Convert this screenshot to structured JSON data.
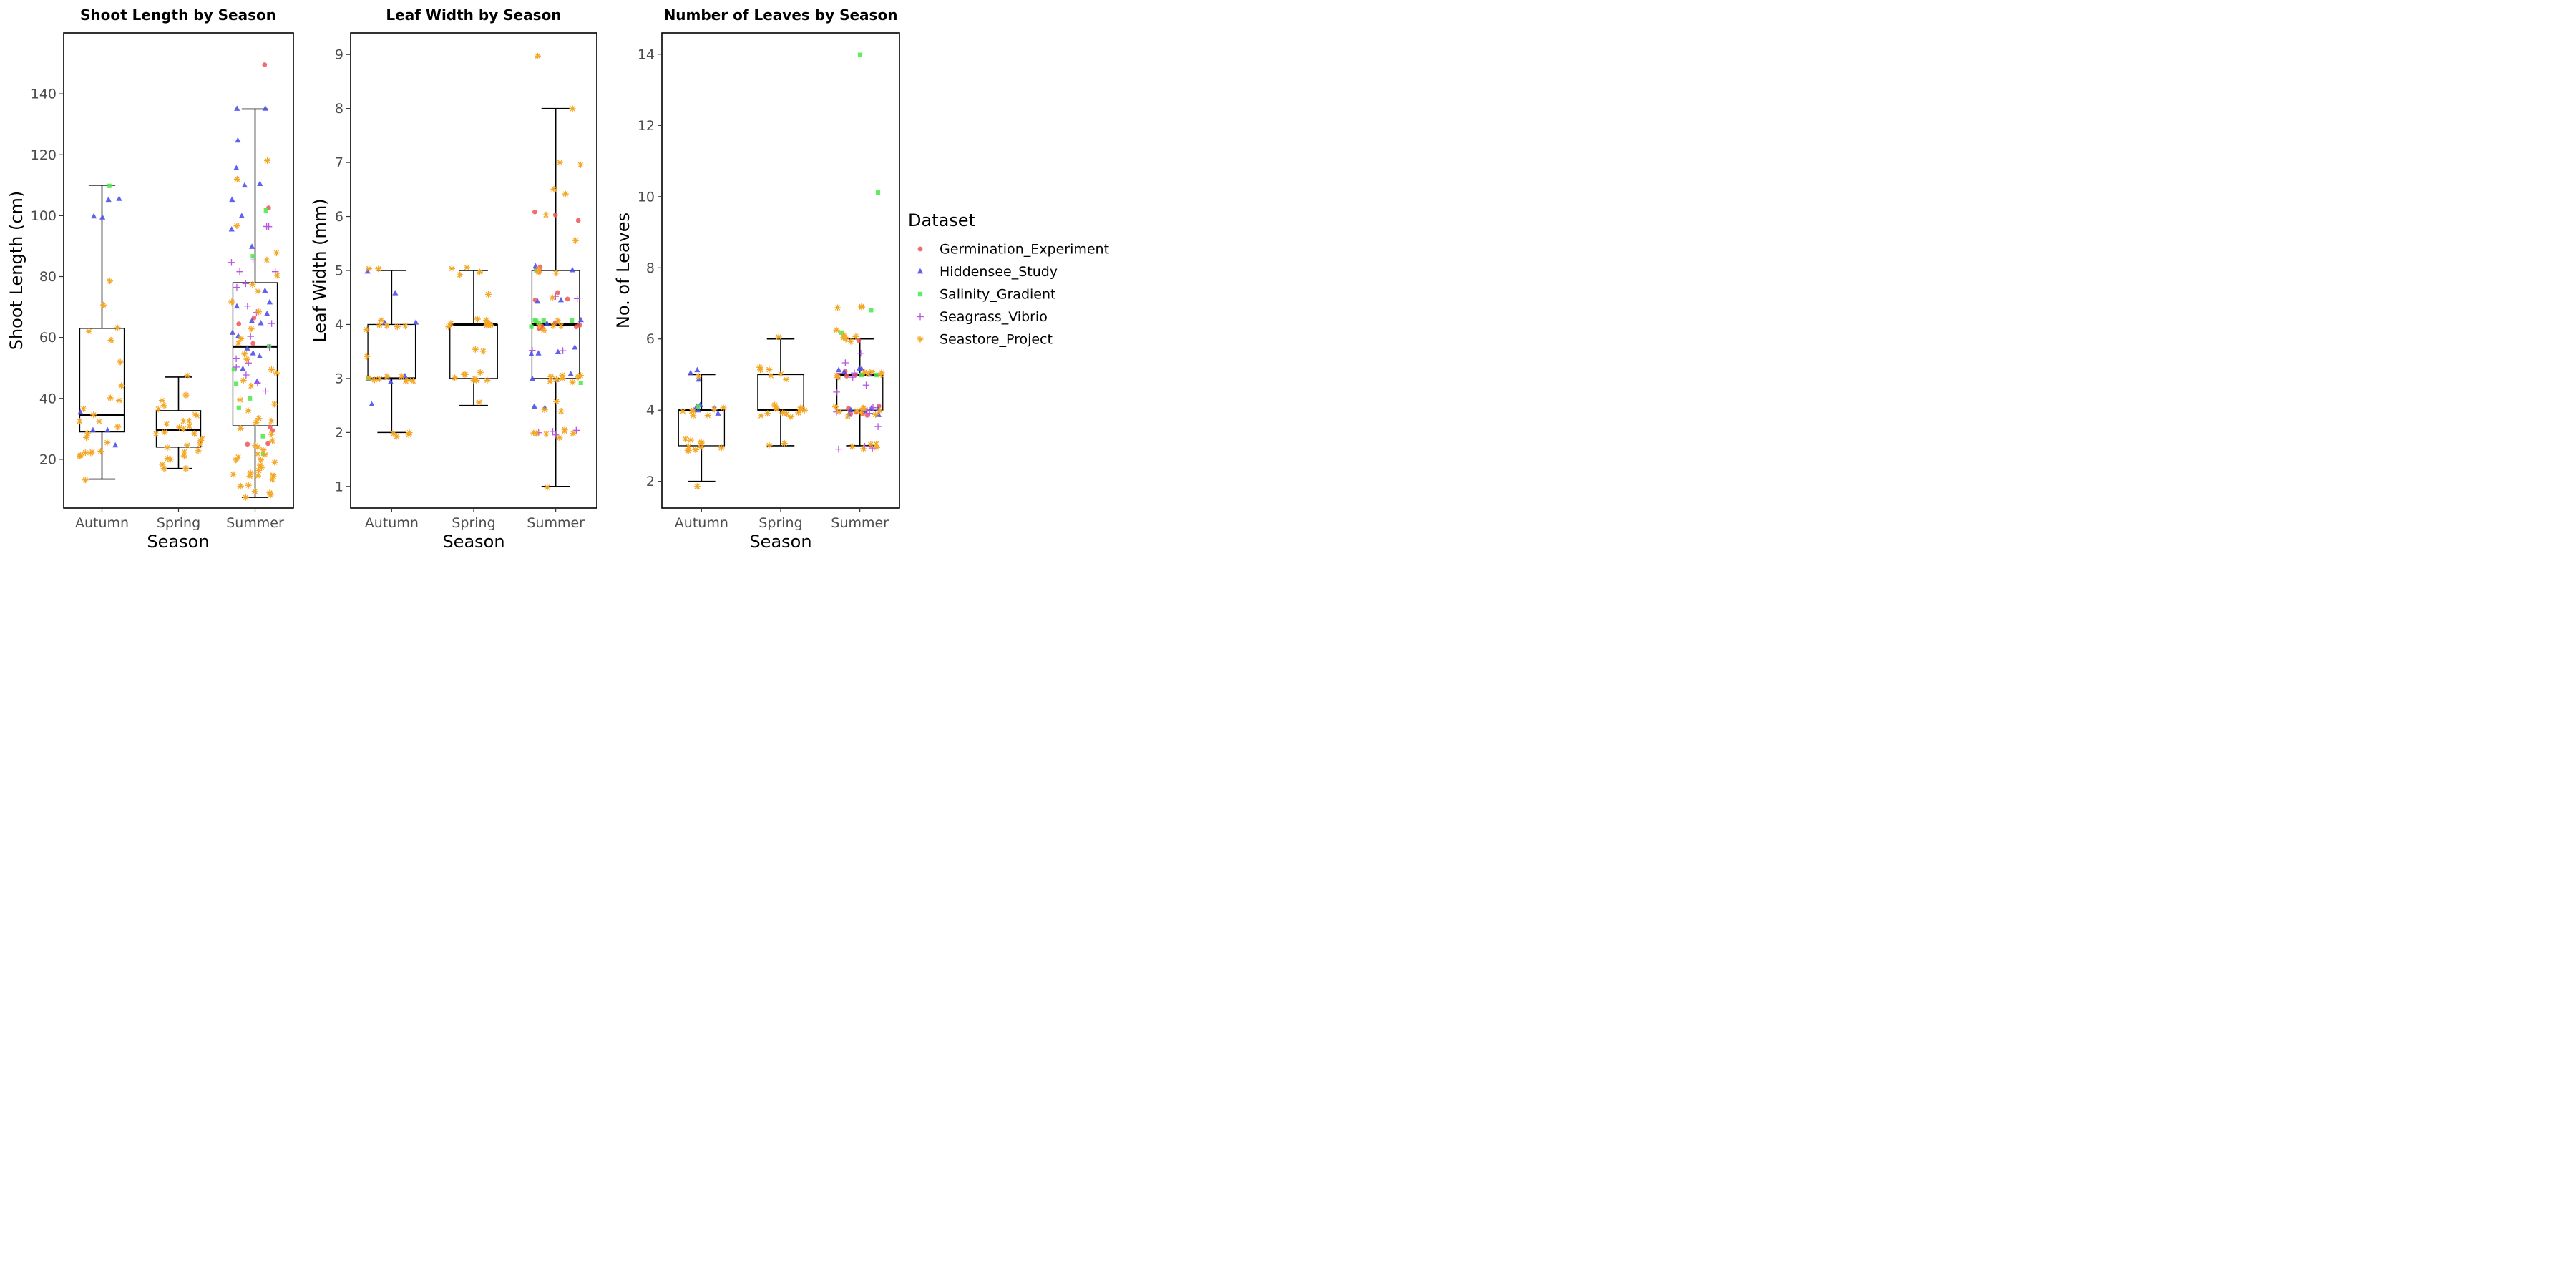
{
  "legend": {
    "title": "Dataset",
    "items": [
      {
        "label": "Germination_Experiment",
        "color": "#F05A5A",
        "shape": "circle"
      },
      {
        "label": "Hiddensee_Study",
        "color": "#4B4BE8",
        "shape": "triangle"
      },
      {
        "label": "Salinity_Gradient",
        "color": "#4FE84F",
        "shape": "square"
      },
      {
        "label": "Seagrass_Vibrio",
        "color": "#B855E6",
        "shape": "plus"
      },
      {
        "label": "Seastore_Project",
        "color": "#F5A623",
        "shape": "asterisk"
      }
    ]
  },
  "chart_data": [
    {
      "type": "box",
      "title": "Shoot Length by Season",
      "xlabel": "Season",
      "ylabel": "Shoot Length (cm)",
      "categories": [
        "Autumn",
        "Spring",
        "Summer"
      ],
      "ylim": [
        4,
        160
      ],
      "yticks": [
        20,
        40,
        60,
        80,
        100,
        120,
        140
      ],
      "boxes": [
        {
          "category": "Autumn",
          "min": 13.5,
          "q1": 29,
          "median": 34.5,
          "q3": 63,
          "max": 110
        },
        {
          "category": "Spring",
          "min": 17,
          "q1": 24,
          "median": 29.5,
          "q3": 36,
          "max": 47
        },
        {
          "category": "Summer",
          "min": 7.5,
          "q1": 31,
          "median": 57,
          "q3": 78,
          "max": 135
        }
      ],
      "points": [
        {
          "category": "Autumn",
          "dataset": "Hiddensee_Study",
          "values": [
            105,
            105,
            100,
            100,
            35,
            30,
            30,
            25
          ]
        },
        {
          "category": "Autumn",
          "dataset": "Salinity_Gradient",
          "values": [
            110
          ]
        },
        {
          "category": "Autumn",
          "dataset": "Seastore_Project",
          "values": [
            78,
            71,
            63,
            62,
            59,
            52,
            44,
            40,
            39,
            37,
            35,
            33,
            32,
            31,
            29,
            27,
            25,
            23,
            22,
            22,
            21,
            22,
            21,
            13.5
          ]
        },
        {
          "category": "Spring",
          "dataset": "Seastore_Project",
          "values": [
            47,
            41,
            39,
            38,
            37,
            35,
            34,
            33,
            33,
            32,
            31,
            30,
            30,
            29,
            28,
            28,
            27,
            26,
            25,
            25,
            24,
            23,
            22,
            21,
            20,
            20,
            18,
            17,
            17
          ]
        },
        {
          "category": "Summer",
          "dataset": "Germination_Experiment",
          "values": [
            149,
            102,
            66,
            64,
            58,
            31,
            29,
            25,
            25
          ]
        },
        {
          "category": "Summer",
          "dataset": "Hiddensee_Study",
          "values": [
            135,
            135,
            125,
            115,
            110,
            110,
            105,
            100,
            95,
            90,
            75,
            72,
            70,
            68,
            65,
            65,
            62,
            60,
            56,
            55,
            54,
            50,
            45
          ]
        },
        {
          "category": "Summer",
          "dataset": "Salinity_Gradient",
          "values": [
            102,
            87,
            57,
            50,
            45,
            40,
            37,
            28,
            22
          ]
        },
        {
          "category": "Summer",
          "dataset": "Seagrass_Vibrio",
          "values": [
            96,
            96,
            85,
            85,
            82,
            82,
            78,
            76,
            70,
            68,
            65,
            60,
            56,
            53,
            52,
            50,
            48,
            45,
            43
          ]
        },
        {
          "category": "Summer",
          "dataset": "Seastore_Project",
          "values": [
            118,
            112,
            97,
            88,
            86,
            80,
            78,
            75,
            72,
            68,
            63,
            60,
            58,
            55,
            53,
            50,
            48,
            46,
            44,
            40,
            38,
            36,
            34,
            33,
            32,
            30,
            28,
            26,
            25,
            24,
            23,
            22,
            22,
            21,
            20,
            20,
            19,
            18,
            17,
            16,
            16,
            15,
            15,
            15,
            14,
            14,
            13,
            12,
            11,
            10,
            9,
            8,
            7.5
          ]
        }
      ]
    },
    {
      "type": "box",
      "title": "Leaf Width by Season",
      "xlabel": "Season",
      "ylabel": "Leaf Width (mm)",
      "categories": [
        "Autumn",
        "Spring",
        "Summer"
      ],
      "ylim": [
        0.6,
        9.4
      ],
      "yticks": [
        1,
        2,
        3,
        4,
        5,
        6,
        7,
        8,
        9
      ],
      "boxes": [
        {
          "category": "Autumn",
          "min": 2,
          "q1": 3,
          "median": 3,
          "q3": 4,
          "max": 5
        },
        {
          "category": "Spring",
          "min": 2.5,
          "q1": 3,
          "median": 4,
          "q3": 4,
          "max": 5
        },
        {
          "category": "Summer",
          "min": 1,
          "q1": 3,
          "median": 4,
          "q3": 5,
          "max": 8
        }
      ],
      "points": [
        {
          "category": "Autumn",
          "dataset": "Hiddensee_Study",
          "values": [
            4.95,
            4.55,
            4.05,
            4.05,
            3.05,
            3.0,
            2.95,
            2.55
          ]
        },
        {
          "category": "Autumn",
          "dataset": "Salinity_Gradient",
          "values": [
            3.0
          ]
        },
        {
          "category": "Autumn",
          "dataset": "Seastore_Project",
          "values": [
            5.05,
            5.05,
            4.05,
            4.0,
            4.0,
            3.95,
            3.95,
            3.9,
            3.4,
            3.05,
            3.05,
            3.0,
            3.0,
            3.0,
            3.0,
            2.95,
            2.95,
            2.0,
            1.95,
            1.95,
            1.95
          ]
        },
        {
          "category": "Spring",
          "dataset": "Seastore_Project",
          "values": [
            5.05,
            5.05,
            5.0,
            4.95,
            4.55,
            4.1,
            4.05,
            4.05,
            4.0,
            4.0,
            4.0,
            4.0,
            3.95,
            3.55,
            3.5,
            3.1,
            3.05,
            3.05,
            3.0,
            3.0,
            2.95,
            2.95,
            2.95,
            2.55
          ]
        },
        {
          "category": "Summer",
          "dataset": "Germination_Experiment",
          "values": [
            6.1,
            6.0,
            5.95,
            5.05,
            5.0,
            4.6,
            4.5,
            4.45,
            4.05,
            4.0,
            3.95,
            3.95,
            3.95,
            3.95
          ]
        },
        {
          "category": "Summer",
          "dataset": "Hiddensee_Study",
          "values": [
            5.05,
            5.0,
            4.45,
            4.4,
            4.05,
            4.05,
            3.55,
            3.5,
            3.45,
            3.45,
            3.05,
            3.0,
            2.95,
            2.5,
            2.45
          ]
        },
        {
          "category": "Summer",
          "dataset": "Salinity_Gradient",
          "values": [
            5.0,
            4.05,
            4.05,
            4.05,
            4.05,
            4.05,
            3.95,
            2.95
          ]
        },
        {
          "category": "Summer",
          "dataset": "Seagrass_Vibrio",
          "values": [
            5.05,
            4.5,
            4.5,
            3.55,
            3.5,
            2.05,
            2.0,
            2.0,
            1.95
          ]
        },
        {
          "category": "Summer",
          "dataset": "Seastore_Project",
          "values": [
            8.95,
            8.0,
            7.0,
            6.98,
            6.5,
            6.45,
            6.05,
            5.55,
            5.05,
            5.0,
            4.95,
            4.5,
            4.05,
            4.0,
            4.0,
            3.95,
            3.9,
            3.05,
            3.05,
            3.0,
            3.0,
            3.0,
            2.95,
            2.95,
            2.95,
            2.55,
            2.45,
            2.4,
            2.05,
            2.0,
            2.0,
            1.95,
            1.95,
            1.95,
            1.9,
            1.0
          ]
        }
      ]
    },
    {
      "type": "box",
      "title": "Number of Leaves by Season",
      "xlabel": "Season",
      "ylabel": "No. of Leaves",
      "categories": [
        "Autumn",
        "Spring",
        "Summer"
      ],
      "ylim": [
        1.25,
        14.6
      ],
      "yticks": [
        2,
        4,
        6,
        8,
        10,
        12,
        14
      ],
      "boxes": [
        {
          "category": "Autumn",
          "min": 2,
          "q1": 3,
          "median": 4,
          "q3": 4,
          "max": 5
        },
        {
          "category": "Spring",
          "min": 3,
          "q1": 4,
          "median": 4,
          "q3": 5,
          "max": 6
        },
        {
          "category": "Summer",
          "min": 3,
          "q1": 4,
          "median": 5,
          "q3": 5,
          "max": 6
        }
      ],
      "points": [
        {
          "category": "Autumn",
          "dataset": "Hiddensee_Study",
          "values": [
            5.15,
            5.0,
            4.85,
            4.15,
            4.1,
            4.05,
            4.0,
            3.95,
            3.9
          ]
        },
        {
          "category": "Autumn",
          "dataset": "Salinity_Gradient",
          "values": [
            4.05
          ]
        },
        {
          "category": "Autumn",
          "dataset": "Seastore_Project",
          "values": [
            4.95,
            4.1,
            4.05,
            4.0,
            3.95,
            3.95,
            3.9,
            3.85,
            3.2,
            3.15,
            3.1,
            3.05,
            3.0,
            3.0,
            2.95,
            2.9,
            2.9,
            2.85,
            1.85
          ]
        },
        {
          "category": "Spring",
          "dataset": "Seastore_Project",
          "values": [
            6.05,
            5.2,
            5.15,
            5.1,
            5.05,
            4.95,
            4.9,
            4.1,
            4.05,
            4.05,
            4.0,
            4.0,
            4.0,
            3.95,
            3.95,
            3.9,
            3.9,
            3.85,
            3.85,
            3.1,
            3.05
          ]
        },
        {
          "category": "Summer",
          "dataset": "Germination_Experiment",
          "values": [
            5.95,
            5.05,
            5.0,
            4.95,
            4.1,
            4.05,
            4.0,
            3.95,
            3.9,
            3.9,
            3.85
          ]
        },
        {
          "category": "Summer",
          "dataset": "Hiddensee_Study",
          "values": [
            5.2,
            5.15,
            5.1,
            5.05,
            5.0,
            4.95,
            4.1,
            4.05,
            4.0,
            3.95,
            3.9,
            3.85
          ]
        },
        {
          "category": "Summer",
          "dataset": "Salinity_Gradient",
          "values": [
            13.95,
            10.15,
            6.85,
            6.15,
            5.0,
            4.95
          ]
        },
        {
          "category": "Summer",
          "dataset": "Seagrass_Vibrio",
          "values": [
            5.6,
            5.3,
            5.05,
            5.0,
            4.95,
            4.7,
            4.5,
            4.05,
            4.0,
            3.95,
            3.95,
            3.55,
            3.0,
            2.95,
            2.9
          ]
        },
        {
          "category": "Summer",
          "dataset": "Seastore_Project",
          "values": [
            6.95,
            6.9,
            6.85,
            6.2,
            6.15,
            6.1,
            6.05,
            6.0,
            5.9,
            5.1,
            5.05,
            5.0,
            5.0,
            4.95,
            4.95,
            4.9,
            4.1,
            4.05,
            4.05,
            4.0,
            4.0,
            3.95,
            3.95,
            3.9,
            3.85,
            3.1,
            3.05,
            3.0,
            3.0,
            2.95
          ]
        }
      ]
    }
  ]
}
